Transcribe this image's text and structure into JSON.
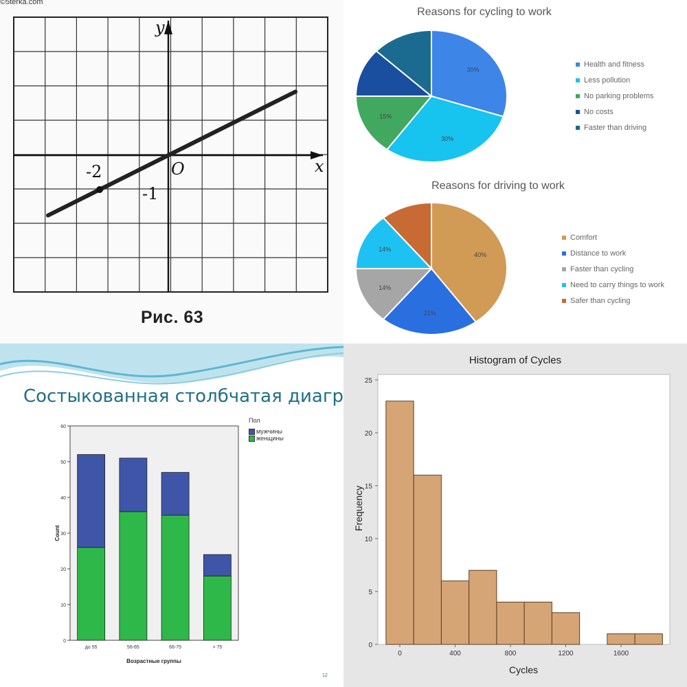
{
  "watermark": "©5terka.com",
  "chart_data": [
    {
      "type": "line",
      "x": [
        -3.5,
        3.7
      ],
      "y": [
        -1.75,
        1.85
      ],
      "xlabel": "x",
      "ylabel": "y",
      "xlim": [
        -5,
        4.5
      ],
      "ylim": [
        -4,
        4
      ],
      "grid": true,
      "caption": "Рис. 63",
      "annotations": [
        {
          "label": "-2",
          "x": -2
        },
        {
          "label": "-1",
          "y": -1
        },
        {
          "label": "O",
          "x": 0,
          "y": 0
        }
      ],
      "point": [
        -2,
        -1
      ]
    },
    {
      "type": "pie",
      "title": "Reasons for cycling to work",
      "categories": [
        "Health and fitness",
        "Less pollution",
        "No parking problems",
        "No costs",
        "Faster than driving"
      ],
      "values": [
        30,
        30,
        15,
        12,
        13
      ],
      "data_labels": [
        "30%",
        "30%",
        "15%",
        "",
        ""
      ],
      "legend": "right",
      "colors": [
        "#3d86e8",
        "#17c3ef",
        "#41a85f",
        "#1a4e9e",
        "#1a6b8f"
      ]
    },
    {
      "type": "pie",
      "title": "Reasons for driving to work",
      "categories": [
        "Comfort",
        "Distance to work",
        "Faster than cycling",
        "Need to carry things to work",
        "Safer than cycling"
      ],
      "values": [
        40,
        21,
        14,
        14,
        11
      ],
      "data_labels": [
        "40%",
        "21%",
        "14%",
        "14%",
        ""
      ],
      "legend": "right",
      "colors": [
        "#d19a55",
        "#2a6fe0",
        "#a6a6a6",
        "#1ec2f2",
        "#c76a33"
      ]
    },
    {
      "type": "bar",
      "stacked": true,
      "title": "Состыкованная столбчатая диаграмма",
      "categories": [
        "до 55",
        "56-65",
        "66-75",
        "> 75"
      ],
      "series": [
        {
          "name": "женщины",
          "values": [
            26,
            36,
            35,
            18
          ]
        },
        {
          "name": "мужчины",
          "values": [
            26,
            15,
            12,
            6
          ]
        }
      ],
      "xlabel": "Возрастные группы",
      "ylabel": "Count",
      "ylim": [
        0,
        60
      ],
      "yticks": [
        0,
        10,
        20,
        30,
        40,
        50,
        60
      ],
      "legend_title": "Пол",
      "legend": "top-right",
      "colors": {
        "женщины": "#2fb84a",
        "мужчины": "#3f55a8"
      },
      "page_number": "12"
    },
    {
      "type": "bar",
      "histogram": true,
      "title": "Histogram of Cycles",
      "bin_edges": [
        -100,
        100,
        300,
        500,
        700,
        900,
        1100,
        1300,
        1500,
        1700,
        1900
      ],
      "values": [
        23,
        16,
        6,
        7,
        4,
        4,
        3,
        0,
        1,
        1
      ],
      "xlabel": "Cycles",
      "ylabel": "Frequency",
      "xticks": [
        0,
        400,
        800,
        1200,
        1600
      ],
      "yticks": [
        0,
        5,
        10,
        15,
        20,
        25
      ],
      "xlim": [
        -120,
        1950
      ],
      "ylim": [
        0,
        25
      ],
      "color": "#d6a576"
    }
  ]
}
